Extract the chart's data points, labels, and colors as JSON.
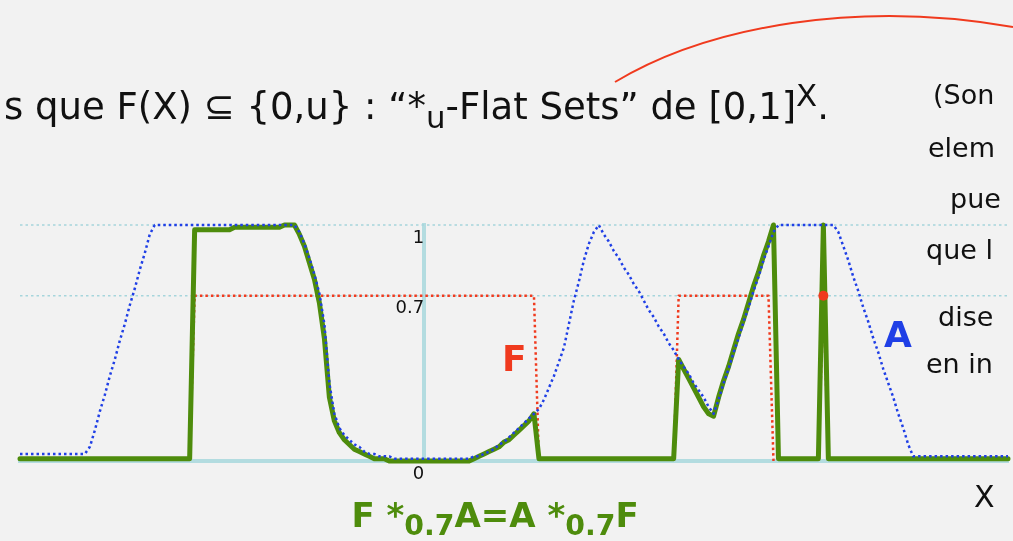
{
  "chart_data": {
    "type": "line",
    "title": "s que F(X) ⊆ {0,u} : “*$_{u}$-Flat Sets” de [0,1]$^{X}$.",
    "xlabel": "X",
    "annotations": [
      "(Son",
      "elem",
      "pue",
      "que l",
      "dise",
      "en in"
    ],
    "categories": [
      null,
      null,
      null,
      null,
      null,
      null,
      null,
      null,
      null,
      null,
      null,
      null,
      null,
      null,
      null,
      null,
      null,
      null,
      null,
      null,
      null,
      null,
      null,
      null,
      null,
      null,
      null,
      null,
      null,
      null,
      null,
      null,
      null,
      null,
      null,
      null,
      null,
      null,
      null,
      null,
      null,
      null,
      null,
      null,
      null,
      null,
      null,
      null,
      null,
      null,
      null,
      null,
      null,
      null,
      null,
      null,
      null,
      null,
      null,
      null,
      null,
      null,
      null,
      null,
      null,
      null,
      null,
      null,
      null,
      null,
      null,
      null,
      null,
      null,
      null,
      null,
      null,
      null,
      null,
      null,
      null,
      null,
      null,
      null,
      null,
      null,
      null,
      null,
      null,
      null,
      null,
      null,
      null,
      null,
      null,
      null,
      null,
      null,
      null,
      null,
      null,
      null,
      null,
      null,
      null,
      null,
      null,
      null,
      null,
      null,
      null,
      null,
      null,
      null,
      null,
      null,
      null,
      null,
      null,
      null,
      null,
      null,
      null,
      null,
      null,
      null,
      null,
      null,
      null,
      null,
      null,
      null,
      null,
      null,
      null,
      null,
      null,
      null,
      null,
      null,
      null,
      null,
      null,
      null,
      null,
      null,
      null,
      null,
      null,
      null,
      null,
      null,
      null,
      null,
      null,
      null,
      null,
      null,
      null,
      null,
      null,
      null,
      null,
      null,
      null,
      null,
      null,
      null,
      null,
      null,
      null,
      null,
      null,
      null,
      null,
      null,
      null,
      null,
      null,
      null,
      null,
      null,
      null,
      null,
      null,
      null,
      null,
      null,
      null,
      null,
      null,
      null,
      null,
      null,
      null,
      null,
      null,
      null,
      null
    ],
    "series": [
      {
        "name": "A",
        "color": "#1f3fe6",
        "line_style": "dotted",
        "values": [
          0.03,
          0.03,
          0.03,
          0.03,
          0.03,
          0.03,
          0.03,
          0.03,
          0.03,
          0.03,
          0.03,
          0.03,
          0.03,
          0.03,
          0.06,
          0.13,
          0.21,
          0.28,
          0.36,
          0.43,
          0.51,
          0.58,
          0.66,
          0.73,
          0.81,
          0.88,
          0.96,
          1,
          1,
          1,
          1,
          1,
          1,
          1,
          1,
          1,
          1,
          1,
          1,
          1,
          1,
          1,
          1,
          1,
          1,
          1,
          1,
          1,
          1,
          1,
          1,
          1,
          1,
          1,
          1,
          1,
          0.97,
          0.92,
          0.86,
          0.79,
          0.71,
          0.58,
          0.33,
          0.2,
          0.14,
          0.11,
          0.09,
          0.07,
          0.06,
          0.04,
          0.03,
          0.03,
          0.02,
          0.02,
          0.02,
          0.01,
          0.01,
          0.01,
          0.01,
          0.01,
          0.01,
          0.01,
          0.01,
          0.01,
          0.01,
          0.01,
          0.01,
          0.01,
          0.01,
          0.01,
          0.01,
          0.02,
          0.02,
          0.03,
          0.04,
          0.05,
          0.07,
          0.08,
          0.1,
          0.12,
          0.14,
          0.16,
          0.18,
          0.2,
          0.22,
          0.26,
          0.31,
          0.36,
          0.42,
          0.48,
          0.58,
          0.68,
          0.76,
          0.85,
          0.92,
          0.97,
          1,
          0.96,
          0.93,
          0.89,
          0.86,
          0.82,
          0.79,
          0.75,
          0.72,
          0.68,
          0.64,
          0.61,
          0.57,
          0.54,
          0.5,
          0.47,
          0.43,
          0.4,
          0.37,
          0.33,
          0.3,
          0.27,
          0.23,
          0.2,
          0.26,
          0.33,
          0.39,
          0.46,
          0.52,
          0.59,
          0.65,
          0.72,
          0.78,
          0.85,
          0.91,
          0.97,
          1,
          1,
          1,
          1,
          1,
          1,
          1,
          1,
          1,
          1,
          1,
          1,
          0.97,
          0.91,
          0.85,
          0.78,
          0.72,
          0.65,
          0.59,
          0.52,
          0.46,
          0.39,
          0.33,
          0.27,
          0.2,
          0.14,
          0.07,
          0.02,
          0.02,
          0.02,
          0.02,
          0.02,
          0.02,
          0.02,
          0.02,
          0.02,
          0.02,
          0.02,
          0.02,
          0.02,
          0.02,
          0.02,
          0.02,
          0.02,
          0.02,
          0.02,
          0.02
        ]
      },
      {
        "type": "scatter",
        "color": "#f03a1e",
        "marker": "circle",
        "values": [
          null,
          null,
          null,
          null,
          null,
          null,
          null,
          null,
          null,
          null,
          null,
          null,
          null,
          null,
          null,
          null,
          null,
          null,
          null,
          null,
          null,
          null,
          null,
          null,
          null,
          null,
          null,
          null,
          null,
          null,
          null,
          null,
          null,
          null,
          null,
          null,
          null,
          null,
          null,
          null,
          null,
          null,
          null,
          null,
          null,
          null,
          null,
          null,
          null,
          null,
          null,
          null,
          null,
          null,
          null,
          null,
          null,
          null,
          null,
          null,
          null,
          null,
          null,
          null,
          null,
          null,
          null,
          null,
          null,
          null,
          null,
          null,
          null,
          null,
          null,
          null,
          null,
          null,
          null,
          null,
          null,
          null,
          null,
          null,
          null,
          null,
          null,
          null,
          null,
          null,
          null,
          null,
          null,
          null,
          null,
          null,
          null,
          null,
          null,
          null,
          null,
          null,
          null,
          null,
          null,
          null,
          null,
          null,
          null,
          null,
          null,
          null,
          null,
          null,
          null,
          null,
          null,
          null,
          null,
          null,
          null,
          null,
          null,
          null,
          null,
          null,
          null,
          null,
          null,
          null,
          null,
          null,
          null,
          null,
          null,
          null,
          null,
          null,
          null,
          null,
          null,
          null,
          null,
          null,
          null,
          null,
          null,
          null,
          null,
          null,
          null,
          null,
          null,
          null,
          null,
          null,
          null,
          null,
          null,
          null,
          null,
          0.7,
          null,
          null,
          null,
          null,
          null,
          null,
          null,
          null,
          null,
          null,
          null,
          null,
          null,
          null,
          null,
          null,
          null,
          null,
          null,
          null,
          null,
          null,
          null,
          null,
          null,
          null,
          null,
          null,
          null,
          null,
          null,
          null,
          null,
          null,
          null,
          null,
          null
        ]
      },
      {
        "name": "F *$_{0.7}$A=A *$_{0.7}$F",
        "color": "#4e8c0c",
        "line_style": "solid",
        "values": [
          0.01,
          0.01,
          0.01,
          0.01,
          0.01,
          0.01,
          0.01,
          0.01,
          0.01,
          0.01,
          0.01,
          0.01,
          0.01,
          0.01,
          0.01,
          0.01,
          0.01,
          0.01,
          0.01,
          0.01,
          0.01,
          0.01,
          0.01,
          0.01,
          0.01,
          0.01,
          0.01,
          0.01,
          0.01,
          0.01,
          0.01,
          0.01,
          0.01,
          0.01,
          0.01,
          0.98,
          0.98,
          0.98,
          0.98,
          0.98,
          0.98,
          0.98,
          0.98,
          0.99,
          0.99,
          0.99,
          0.99,
          0.99,
          0.99,
          0.99,
          0.99,
          0.99,
          0.99,
          1,
          1,
          1,
          0.96,
          0.91,
          0.84,
          0.77,
          0.67,
          0.52,
          0.27,
          0.17,
          0.12,
          0.09,
          0.07,
          0.05,
          0.04,
          0.03,
          0.02,
          0.01,
          0.01,
          0.01,
          0,
          0,
          0,
          0,
          0,
          0,
          0,
          0,
          0,
          0,
          0,
          0,
          0,
          0,
          0,
          0,
          0,
          0.01,
          0.02,
          0.03,
          0.04,
          0.05,
          0.06,
          0.08,
          0.09,
          0.11,
          0.13,
          0.15,
          0.17,
          0.2,
          0.01,
          0.01,
          0.01,
          0.01,
          0.01,
          0.01,
          0.01,
          0.01,
          0.01,
          0.01,
          0.01,
          0.01,
          0.01,
          0.01,
          0.01,
          0.01,
          0.01,
          0.01,
          0.01,
          0.01,
          0.01,
          0.01,
          0.01,
          0.01,
          0.01,
          0.01,
          0.01,
          0.01,
          0.43,
          0.39,
          0.35,
          0.31,
          0.27,
          0.23,
          0.2,
          0.19,
          0.27,
          0.34,
          0.4,
          0.47,
          0.54,
          0.6,
          0.67,
          0.74,
          0.8,
          0.87,
          0.93,
          1,
          0.01,
          0.01,
          0.01,
          0.01,
          0.01,
          0.01,
          0.01,
          0.01,
          0.01,
          1,
          0.01,
          0.01,
          0.01,
          0.01,
          0.01,
          0.01,
          0.01,
          0.01,
          0.01,
          0.01,
          0.01,
          0.01,
          0.01,
          0.01,
          0.01,
          0.01,
          0.01,
          0.01,
          0.01,
          0.01,
          0.01,
          0.01,
          0.01,
          0.01,
          0.01,
          0.01,
          0.01,
          0.01,
          0.01,
          0.01,
          0.01,
          0.01,
          0.01,
          0.01,
          0.01,
          0.01,
          0.01
        ]
      },
      {
        "name": "F",
        "color": "#f03a1e",
        "line_style": "dotted",
        "values": [
          null,
          null,
          null,
          null,
          null,
          null,
          null,
          null,
          null,
          null,
          null,
          null,
          null,
          null,
          null,
          null,
          null,
          null,
          null,
          null,
          null,
          null,
          null,
          null,
          null,
          null,
          null,
          null,
          null,
          null,
          null,
          null,
          null,
          null,
          0,
          0.7,
          0.7,
          0.7,
          0.7,
          0.7,
          0.7,
          0.7,
          0.7,
          0.7,
          0.7,
          0.7,
          0.7,
          0.7,
          0.7,
          0.7,
          0.7,
          0.7,
          0.7,
          0.7,
          0.7,
          0.7,
          0.7,
          0.7,
          0.7,
          0.7,
          0.7,
          0.7,
          0.7,
          0.7,
          0.7,
          0.7,
          0.7,
          0.7,
          0.7,
          0.7,
          0.7,
          0.7,
          0.7,
          0.7,
          0.7,
          0.7,
          0.7,
          0.7,
          0.7,
          0.7,
          0.7,
          0.7,
          0.7,
          0.7,
          0.7,
          0.7,
          0.7,
          0.7,
          0.7,
          0.7,
          0.7,
          0.7,
          0.7,
          0.7,
          0.7,
          0.7,
          0.7,
          0.7,
          0.7,
          0.7,
          0.7,
          0.7,
          0.7,
          0.7,
          0,
          null,
          null,
          null,
          null,
          null,
          null,
          null,
          null,
          null,
          null,
          null,
          null,
          null,
          null,
          null,
          null,
          null,
          null,
          null,
          null,
          null,
          null,
          null,
          null,
          null,
          null,
          0,
          0.7,
          0.7,
          0.7,
          0.7,
          0.7,
          0.7,
          0.7,
          0.7,
          0.7,
          0.7,
          0.7,
          0.7,
          0.7,
          0.7,
          0.7,
          0.7,
          0.7,
          0.7,
          0.7,
          0,
          null,
          null,
          null,
          null,
          null,
          null,
          null,
          null,
          0,
          0.7,
          0,
          null,
          null,
          null,
          null,
          null,
          null,
          null,
          null,
          null,
          null,
          null,
          null,
          null,
          null,
          null,
          null,
          null,
          null,
          null,
          null,
          null,
          null,
          null,
          null,
          null,
          null,
          null,
          null,
          null,
          null,
          null,
          null,
          null,
          null,
          null,
          null
        ]
      }
    ],
    "ylim": [
      0,
      1
    ],
    "yticks": [
      0,
      0.7,
      1
    ],
    "tick_labels": "y",
    "marker": "none",
    "ref_lines": [
      {
        "axis": "y",
        "value": 1,
        "color": "#a6d5dc",
        "line_style": "dotted"
      },
      {
        "axis": "y",
        "value": 0.7,
        "color": "#a6d5dc",
        "line_style": "dotted"
      }
    ]
  }
}
